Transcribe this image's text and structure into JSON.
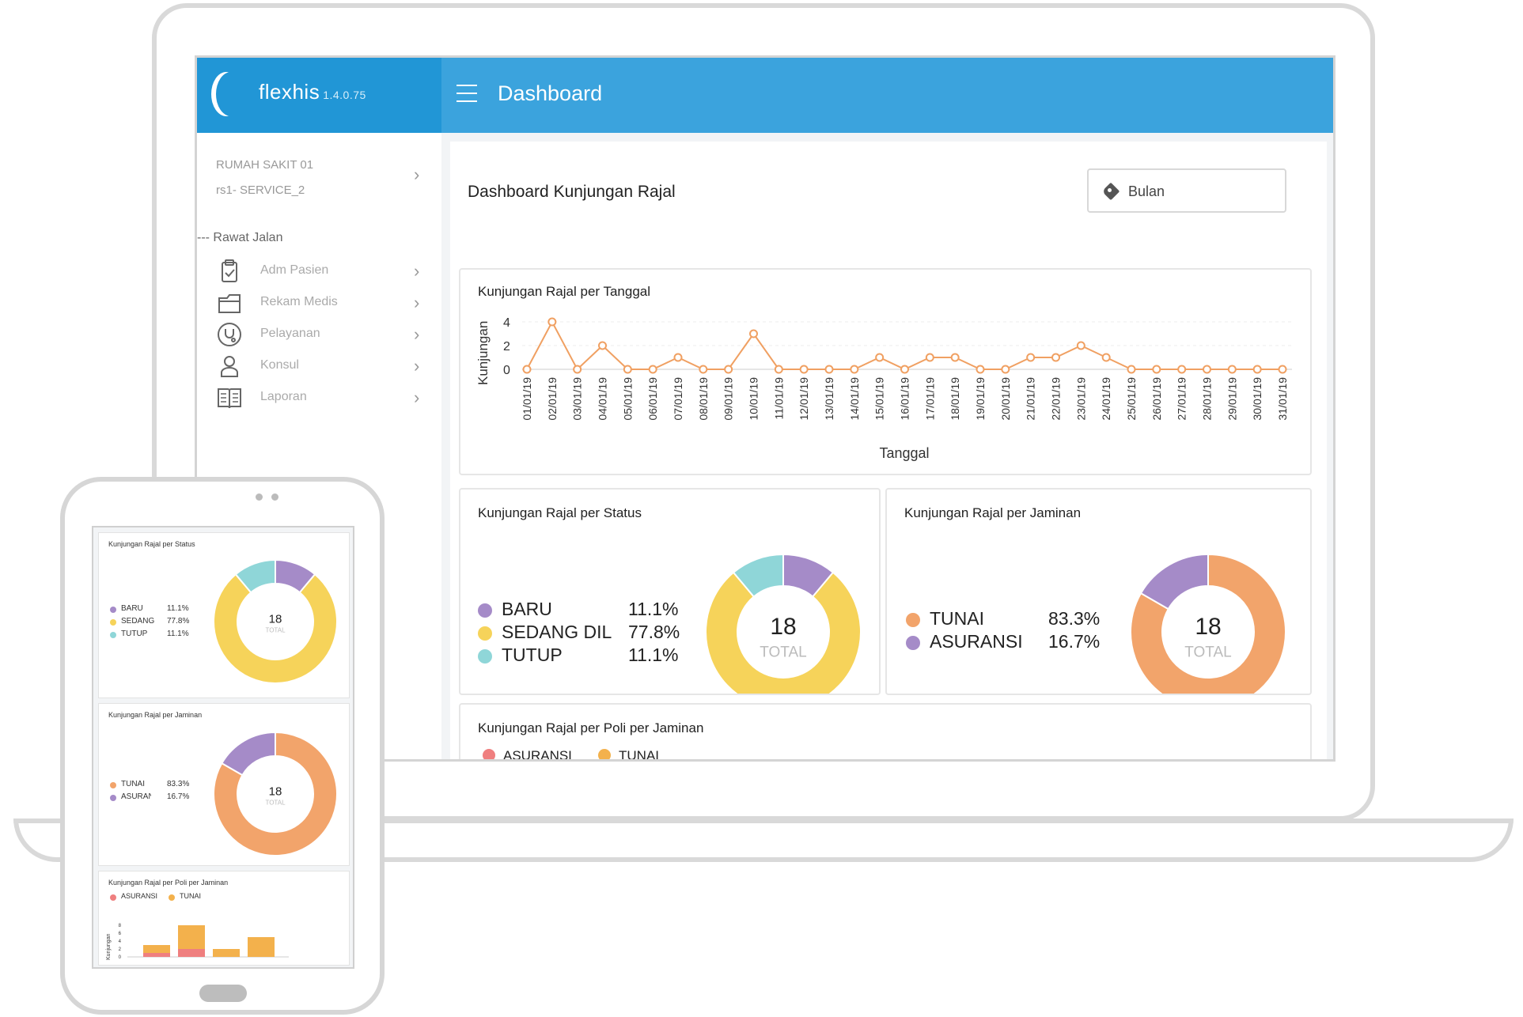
{
  "app": {
    "name": "flexhis",
    "version": "1.4.0.75",
    "page_title": "Dashboard"
  },
  "sidebar": {
    "hospital": "RUMAH SAKIT 01",
    "service": "rs1- SERVICE_2",
    "section": "--- Rawat Jalan",
    "items": [
      {
        "label": "Adm Pasien",
        "icon": "clipboard-icon"
      },
      {
        "label": "Rekam Medis",
        "icon": "folder-icon"
      },
      {
        "label": "Pelayanan",
        "icon": "stethoscope-icon"
      },
      {
        "label": "Konsul",
        "icon": "doctor-icon"
      },
      {
        "label": "Laporan",
        "icon": "book-icon"
      }
    ]
  },
  "main": {
    "title": "Dashboard Kunjungan Rajal",
    "filter_label": "Bulan",
    "filter_icon": "tag-icon"
  },
  "colors": {
    "header": "#3ba3dd",
    "brand": "#2196d6",
    "line": "#f0a062",
    "baru": "#a58bc8",
    "sedang": "#f6d35a",
    "tutup": "#8fd6d8",
    "tunai": "#f2a46b",
    "asuransi": "#a58bc8",
    "bar_asuransi": "#ef7f7f",
    "bar_tunai": "#f3b14c"
  },
  "chart_data": [
    {
      "type": "line",
      "title": "Kunjungan Rajal per Tanggal",
      "xlabel": "Tanggal",
      "ylabel": "Kunjungan",
      "x": [
        "01/01/19",
        "02/01/19",
        "03/01/19",
        "04/01/19",
        "05/01/19",
        "06/01/19",
        "07/01/19",
        "08/01/19",
        "09/01/19",
        "10/01/19",
        "11/01/19",
        "12/01/19",
        "13/01/19",
        "14/01/19",
        "15/01/19",
        "16/01/19",
        "17/01/19",
        "18/01/19",
        "19/01/19",
        "20/01/19",
        "21/01/19",
        "22/01/19",
        "23/01/19",
        "24/01/19",
        "25/01/19",
        "26/01/19",
        "27/01/19",
        "28/01/19",
        "29/01/19",
        "30/01/19",
        "31/01/19"
      ],
      "values": [
        0,
        4,
        0,
        2,
        0,
        0,
        1,
        0,
        0,
        3,
        0,
        0,
        0,
        0,
        1,
        0,
        1,
        1,
        0,
        0,
        1,
        1,
        2,
        1,
        0,
        0,
        0,
        0,
        0,
        0,
        0
      ],
      "yticks": [
        "0",
        "2",
        "4"
      ],
      "ylim": [
        0,
        4
      ]
    },
    {
      "type": "pie",
      "title": "Kunjungan Rajal per Status",
      "center_value": "18",
      "center_label": "TOTAL",
      "slices": [
        {
          "name": "BARU",
          "value": 11.1,
          "label": "11.1%"
        },
        {
          "name": "SEDANG DIL",
          "value": 77.8,
          "label": "77.8%"
        },
        {
          "name": "TUTUP",
          "value": 11.1,
          "label": "11.1%"
        }
      ]
    },
    {
      "type": "pie",
      "title": "Kunjungan Rajal per Jaminan",
      "center_value": "18",
      "center_label": "TOTAL",
      "slices": [
        {
          "name": "TUNAI",
          "value": 83.3,
          "label": "83.3%"
        },
        {
          "name": "ASURANSI",
          "value": 16.7,
          "label": "16.7%"
        }
      ]
    },
    {
      "type": "bar",
      "title": "Kunjungan Rajal per Poli per Jaminan",
      "ylabel": "Kunjungan",
      "yticks": [
        "0",
        "2",
        "4",
        "6",
        "8"
      ],
      "ylim": [
        0,
        8
      ],
      "categories": [
        "",
        "",
        "",
        ""
      ],
      "series": [
        {
          "name": "ASURANSI",
          "values": [
            1,
            2,
            0,
            0
          ]
        },
        {
          "name": "TUNAI",
          "values": [
            2,
            6,
            2,
            5
          ]
        }
      ]
    }
  ],
  "phone": {
    "status_title": "Kunjungan Rajal per Status",
    "status_legend": [
      {
        "name": "BARU",
        "pct": "11.1%"
      },
      {
        "name": "SEDANG DIL",
        "pct": "77.8%"
      },
      {
        "name": "TUTUP",
        "pct": "11.1%"
      }
    ],
    "jaminan_title": "Kunjungan Rajal per Jaminan",
    "jaminan_legend": [
      {
        "name": "TUNAI",
        "pct": "83.3%"
      },
      {
        "name": "ASURANSI",
        "pct": "16.7%"
      }
    ],
    "total_value": "18",
    "total_label": "TOTAL",
    "poli_title": "Kunjungan Rajal per Poli per Jaminan"
  }
}
